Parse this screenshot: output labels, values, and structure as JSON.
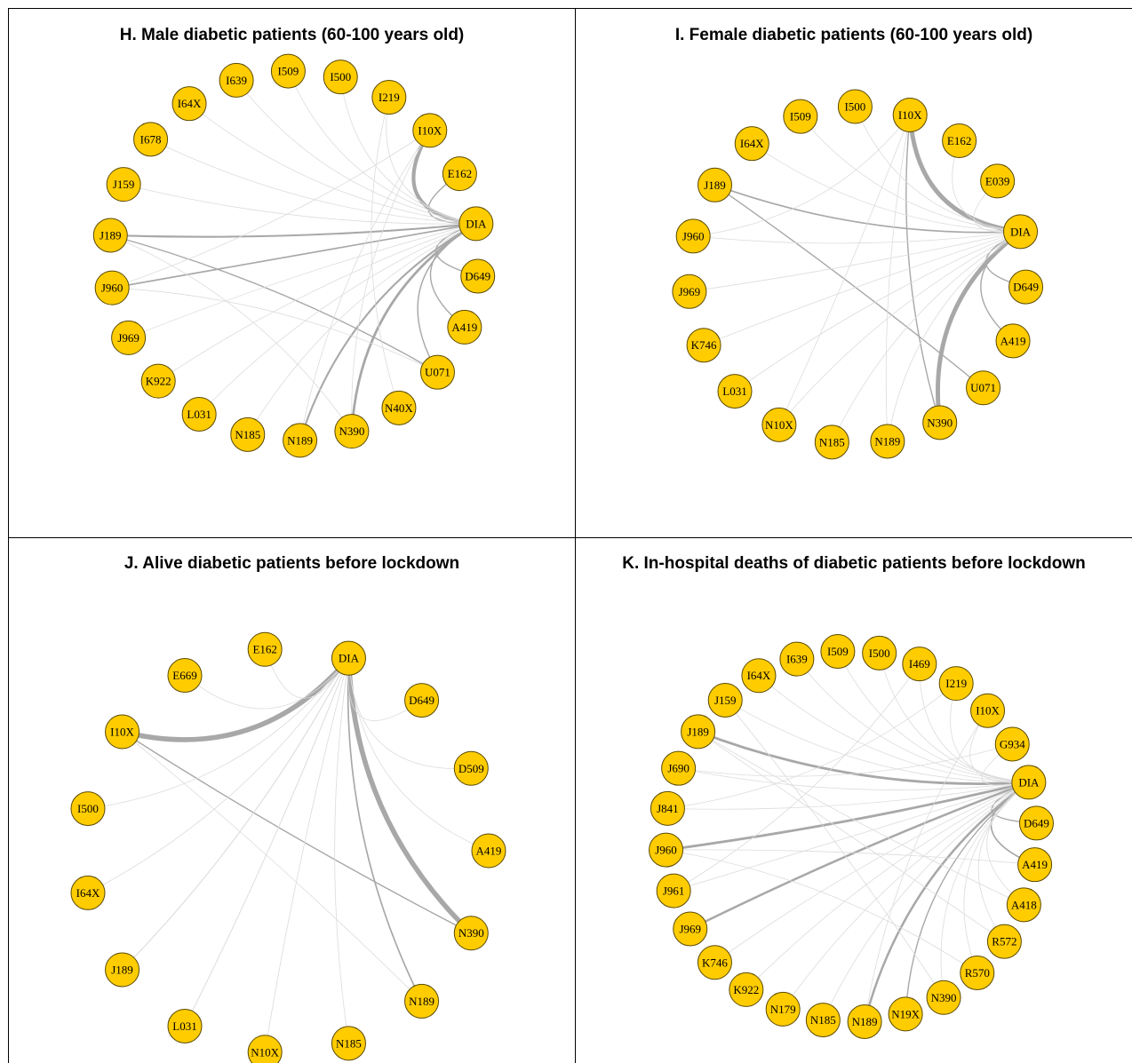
{
  "colors": {
    "node_fill": "#FFCC00",
    "node_stroke": "#5a4a00",
    "edge": "#a8a8a8",
    "edge_light": "#dcdcdc",
    "border": "#000000"
  },
  "panels": [
    {
      "id": "H",
      "title": "H. Male diabetic patients (60-100 years old)",
      "nodes": [
        "DIA",
        "D649",
        "A419",
        "U071",
        "N40X",
        "N390",
        "N189",
        "N185",
        "L031",
        "K922",
        "J969",
        "J960",
        "J189",
        "J159",
        "I678",
        "I64X",
        "I639",
        "I509",
        "I500",
        "I219",
        "I10X",
        "E162"
      ],
      "edges": [
        {
          "from": "DIA",
          "to": "I10X",
          "weight": 3
        },
        {
          "from": "DIA",
          "to": "N390",
          "weight": 2
        },
        {
          "from": "DIA",
          "to": "N189",
          "weight": 1.5
        },
        {
          "from": "DIA",
          "to": "J189",
          "weight": 1.5
        },
        {
          "from": "DIA",
          "to": "J960",
          "weight": 1.2
        },
        {
          "from": "DIA",
          "to": "A419",
          "weight": 1
        },
        {
          "from": "DIA",
          "to": "U071",
          "weight": 1
        },
        {
          "from": "DIA",
          "to": "D649",
          "weight": 1
        },
        {
          "from": "DIA",
          "to": "E162",
          "weight": 1
        },
        {
          "from": "J189",
          "to": "U071",
          "weight": 1
        },
        {
          "from": "DIA",
          "to": "N185",
          "weight": 0.5
        },
        {
          "from": "DIA",
          "to": "K922",
          "weight": 0.5
        },
        {
          "from": "DIA",
          "to": "J969",
          "weight": 0.5
        },
        {
          "from": "DIA",
          "to": "I500",
          "weight": 0.5
        },
        {
          "from": "DIA",
          "to": "I509",
          "weight": 0.5
        },
        {
          "from": "DIA",
          "to": "I639",
          "weight": 0.5
        },
        {
          "from": "DIA",
          "to": "I64X",
          "weight": 0.5
        },
        {
          "from": "DIA",
          "to": "I678",
          "weight": 0.5
        },
        {
          "from": "DIA",
          "to": "J159",
          "weight": 0.5
        },
        {
          "from": "DIA",
          "to": "L031",
          "weight": 0.5
        },
        {
          "from": "I10X",
          "to": "N189",
          "weight": 0.5
        },
        {
          "from": "I10X",
          "to": "J960",
          "weight": 0.5
        },
        {
          "from": "I219",
          "to": "N40X",
          "weight": 0.5
        },
        {
          "from": "I219",
          "to": "DIA",
          "weight": 0.5
        },
        {
          "from": "J189",
          "to": "N390",
          "weight": 0.5
        },
        {
          "from": "J960",
          "to": "U071",
          "weight": 0.5
        },
        {
          "from": "I10X",
          "to": "N390",
          "weight": 0.5
        }
      ]
    },
    {
      "id": "I",
      "title": "I. Female diabetic patients (60-100 years old)",
      "nodes": [
        "DIA",
        "D649",
        "A419",
        "U071",
        "N390",
        "N189",
        "N185",
        "N10X",
        "L031",
        "K746",
        "J969",
        "J960",
        "J189",
        "I64X",
        "I509",
        "I500",
        "I10X",
        "E162",
        "E039"
      ],
      "edges": [
        {
          "from": "DIA",
          "to": "I10X",
          "weight": 3.5
        },
        {
          "from": "DIA",
          "to": "N390",
          "weight": 3.5
        },
        {
          "from": "DIA",
          "to": "J189",
          "weight": 1.2
        },
        {
          "from": "J189",
          "to": "U071",
          "weight": 1
        },
        {
          "from": "I10X",
          "to": "N390",
          "weight": 1
        },
        {
          "from": "DIA",
          "to": "A419",
          "weight": 1
        },
        {
          "from": "DIA",
          "to": "D649",
          "weight": 1
        },
        {
          "from": "DIA",
          "to": "E039",
          "weight": 0.6
        },
        {
          "from": "DIA",
          "to": "E162",
          "weight": 0.6
        },
        {
          "from": "DIA",
          "to": "N189",
          "weight": 0.5
        },
        {
          "from": "DIA",
          "to": "N185",
          "weight": 0.5
        },
        {
          "from": "DIA",
          "to": "N10X",
          "weight": 0.5
        },
        {
          "from": "DIA",
          "to": "L031",
          "weight": 0.5
        },
        {
          "from": "DIA",
          "to": "K746",
          "weight": 0.5
        },
        {
          "from": "DIA",
          "to": "J969",
          "weight": 0.5
        },
        {
          "from": "DIA",
          "to": "J960",
          "weight": 0.5
        },
        {
          "from": "DIA",
          "to": "I64X",
          "weight": 0.5
        },
        {
          "from": "DIA",
          "to": "I509",
          "weight": 0.5
        },
        {
          "from": "DIA",
          "to": "I500",
          "weight": 0.5
        },
        {
          "from": "I10X",
          "to": "N189",
          "weight": 0.5
        },
        {
          "from": "I10X",
          "to": "N10X",
          "weight": 0.5
        },
        {
          "from": "I10X",
          "to": "J960",
          "weight": 0.5
        }
      ]
    },
    {
      "id": "J",
      "title": "J. Alive diabetic patients before lockdown",
      "nodes": [
        "DIA",
        "D649",
        "D509",
        "A419",
        "N390",
        "N189",
        "N185",
        "N10X",
        "L031",
        "J189",
        "I64X",
        "I500",
        "I10X",
        "E669",
        "E162"
      ],
      "edges": [
        {
          "from": "DIA",
          "to": "I10X",
          "weight": 4
        },
        {
          "from": "DIA",
          "to": "N390",
          "weight": 4
        },
        {
          "from": "DIA",
          "to": "N189",
          "weight": 1.2
        },
        {
          "from": "I10X",
          "to": "N390",
          "weight": 1
        },
        {
          "from": "DIA",
          "to": "J189",
          "weight": 0.8
        },
        {
          "from": "DIA",
          "to": "L031",
          "weight": 0.7
        },
        {
          "from": "DIA",
          "to": "N10X",
          "weight": 0.6
        },
        {
          "from": "DIA",
          "to": "N185",
          "weight": 0.6
        },
        {
          "from": "DIA",
          "to": "I64X",
          "weight": 0.5
        },
        {
          "from": "DIA",
          "to": "I500",
          "weight": 0.5
        },
        {
          "from": "DIA",
          "to": "A419",
          "weight": 0.5
        },
        {
          "from": "DIA",
          "to": "D509",
          "weight": 0.5
        },
        {
          "from": "DIA",
          "to": "D649",
          "weight": 0.5
        },
        {
          "from": "DIA",
          "to": "E669",
          "weight": 0.5
        },
        {
          "from": "DIA",
          "to": "E162",
          "weight": 0.5
        },
        {
          "from": "I10X",
          "to": "N189",
          "weight": 0.5
        }
      ]
    },
    {
      "id": "K",
      "title": "K. In-hospital deaths of diabetic patients before lockdown",
      "nodes": [
        "DIA",
        "D649",
        "A419",
        "A418",
        "R572",
        "R570",
        "N390",
        "N19X",
        "N189",
        "N185",
        "N179",
        "K922",
        "K746",
        "J969",
        "J961",
        "J960",
        "J841",
        "J690",
        "J189",
        "J159",
        "I64X",
        "I639",
        "I509",
        "I500",
        "I469",
        "I219",
        "I10X",
        "G934"
      ],
      "edges": [
        {
          "from": "DIA",
          "to": "J189",
          "weight": 2
        },
        {
          "from": "DIA",
          "to": "J960",
          "weight": 2
        },
        {
          "from": "DIA",
          "to": "J969",
          "weight": 1.8
        },
        {
          "from": "DIA",
          "to": "N189",
          "weight": 1.8
        },
        {
          "from": "DIA",
          "to": "A419",
          "weight": 1.2
        },
        {
          "from": "DIA",
          "to": "D649",
          "weight": 1
        },
        {
          "from": "DIA",
          "to": "N19X",
          "weight": 1
        },
        {
          "from": "J189",
          "to": "A418",
          "weight": 0.6
        },
        {
          "from": "J189",
          "to": "R572",
          "weight": 0.6
        },
        {
          "from": "J960",
          "to": "A419",
          "weight": 0.6
        },
        {
          "from": "DIA",
          "to": "A418",
          "weight": 0.5
        },
        {
          "from": "DIA",
          "to": "R572",
          "weight": 0.5
        },
        {
          "from": "DIA",
          "to": "R570",
          "weight": 0.5
        },
        {
          "from": "DIA",
          "to": "N390",
          "weight": 0.5
        },
        {
          "from": "DIA",
          "to": "N185",
          "weight": 0.5
        },
        {
          "from": "DIA",
          "to": "N179",
          "weight": 0.5
        },
        {
          "from": "DIA",
          "to": "K922",
          "weight": 0.5
        },
        {
          "from": "DIA",
          "to": "K746",
          "weight": 0.5
        },
        {
          "from": "DIA",
          "to": "J961",
          "weight": 0.5
        },
        {
          "from": "DIA",
          "to": "J841",
          "weight": 0.5
        },
        {
          "from": "DIA",
          "to": "J690",
          "weight": 0.5
        },
        {
          "from": "DIA",
          "to": "J159",
          "weight": 0.5
        },
        {
          "from": "DIA",
          "to": "I64X",
          "weight": 0.5
        },
        {
          "from": "DIA",
          "to": "I639",
          "weight": 0.5
        },
        {
          "from": "DIA",
          "to": "I509",
          "weight": 0.5
        },
        {
          "from": "DIA",
          "to": "I500",
          "weight": 0.5
        },
        {
          "from": "DIA",
          "to": "I469",
          "weight": 0.5
        },
        {
          "from": "DIA",
          "to": "I219",
          "weight": 0.5
        },
        {
          "from": "DIA",
          "to": "I10X",
          "weight": 0.5
        },
        {
          "from": "DIA",
          "to": "G934",
          "weight": 0.5
        },
        {
          "from": "I10X",
          "to": "N189",
          "weight": 0.5
        },
        {
          "from": "I469",
          "to": "J961",
          "weight": 0.5
        },
        {
          "from": "I219",
          "to": "J841",
          "weight": 0.5
        },
        {
          "from": "G934",
          "to": "J690",
          "weight": 0.5
        },
        {
          "from": "J159",
          "to": "N390",
          "weight": 0.5
        },
        {
          "from": "J960",
          "to": "R570",
          "weight": 0.5
        }
      ]
    }
  ]
}
